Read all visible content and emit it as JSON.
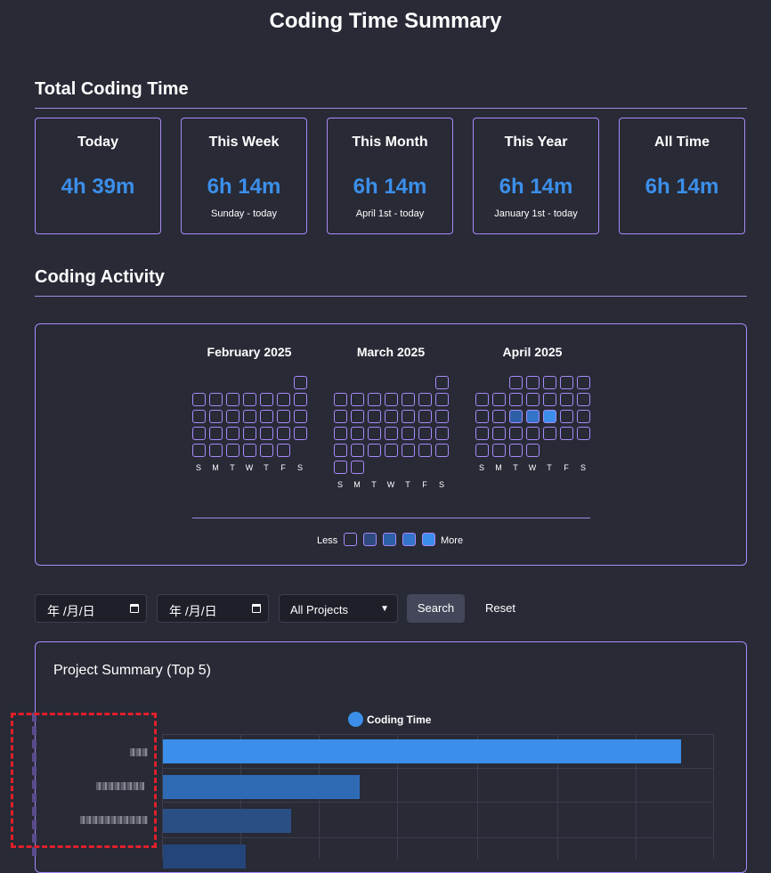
{
  "page_title": "Coding Time Summary",
  "sections": {
    "total": "Total Coding Time",
    "activity": "Coding Activity"
  },
  "stats": [
    {
      "label": "Today",
      "value": "4h 39m",
      "sub": ""
    },
    {
      "label": "This Week",
      "value": "6h 14m",
      "sub": "Sunday - today"
    },
    {
      "label": "This Month",
      "value": "6h 14m",
      "sub": "April 1st - today"
    },
    {
      "label": "This Year",
      "value": "6h 14m",
      "sub": "January 1st - today"
    },
    {
      "label": "All Time",
      "value": "6h 14m",
      "sub": ""
    }
  ],
  "heatmap": {
    "months": [
      "February 2025",
      "March 2025",
      "April 2025"
    ],
    "weekdays": [
      "S",
      "M",
      "T",
      "W",
      "T",
      "F",
      "S"
    ],
    "legend_less": "Less",
    "legend_more": "More",
    "levels": [
      "#282a36",
      "#2f4a7e",
      "#2d5fa6",
      "#3474c9",
      "#3b8fea"
    ],
    "active_days": {
      "April 2025": {
        "15": 2,
        "16": 3,
        "17": 4
      }
    }
  },
  "filters": {
    "start_date": "年 /月/日",
    "end_date": "年 /月/日",
    "project_select": "All Projects",
    "search_label": "Search",
    "reset_label": "Reset"
  },
  "project_summary": {
    "title": "Project Summary (Top 5)",
    "legend": "Coding Time",
    "bar_colors": [
      "#3b8fea",
      "#2f6bb5",
      "#2a4f85",
      "#24457a"
    ]
  },
  "chart_data": {
    "type": "bar",
    "orientation": "horizontal",
    "title": "Project Summary (Top 5)",
    "series": [
      {
        "name": "Coding Time",
        "values": [
          1,
          0.38,
          0.247,
          0.16
        ]
      }
    ],
    "categories": [
      "",
      "",
      "",
      ""
    ],
    "grid": true,
    "legend": "top-center"
  }
}
